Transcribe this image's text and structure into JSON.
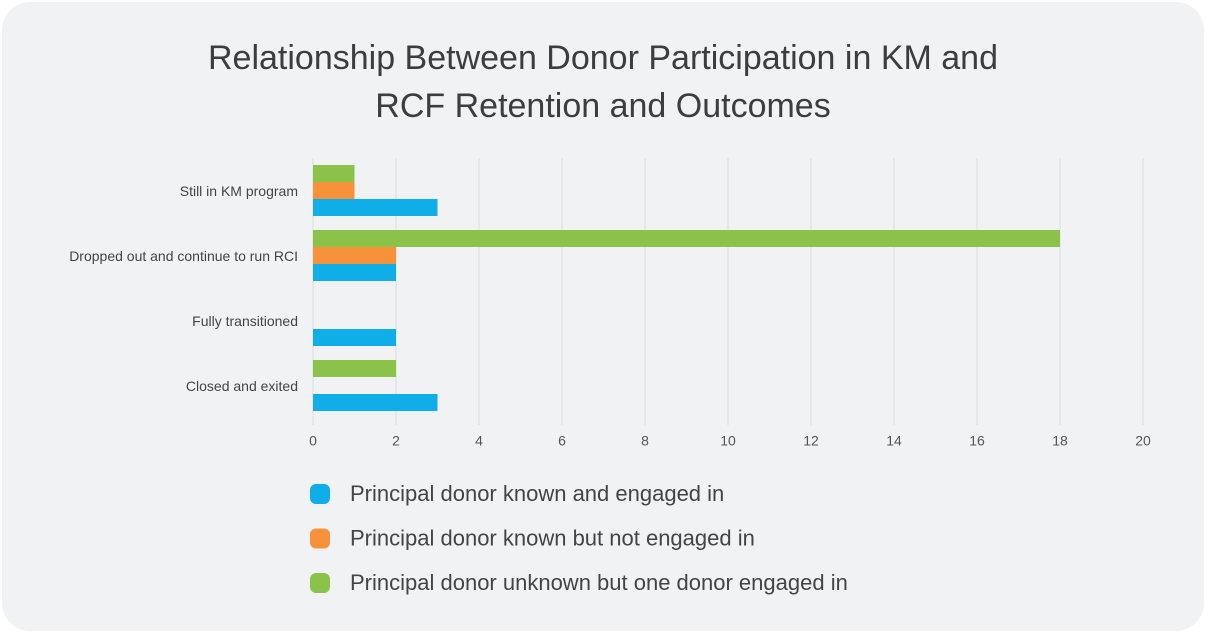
{
  "chart_data": {
    "type": "hbar",
    "title": [
      "Relationship Between Donor Participation in KM and",
      "RCF Retention and Outcomes"
    ],
    "categories": [
      "Still in KM program",
      "Dropped out and continue to run RCI",
      "Fully transitioned",
      "Closed and exited"
    ],
    "series": [
      {
        "name": "Principal donor known and engaged in",
        "color": "#10aee8",
        "values": [
          3,
          2,
          2,
          3
        ]
      },
      {
        "name": "Principal donor known but not engaged in",
        "color": "#f7923a",
        "values": [
          1,
          2,
          0,
          0
        ]
      },
      {
        "name": "Principal donor unknown but one donor engaged in",
        "color": "#8bc34a",
        "values": [
          1,
          18,
          0,
          2
        ]
      }
    ],
    "xlim": [
      0,
      20
    ],
    "xticks": [
      0,
      2,
      4,
      6,
      8,
      10,
      12,
      14,
      16,
      18,
      20
    ],
    "grid": true
  }
}
